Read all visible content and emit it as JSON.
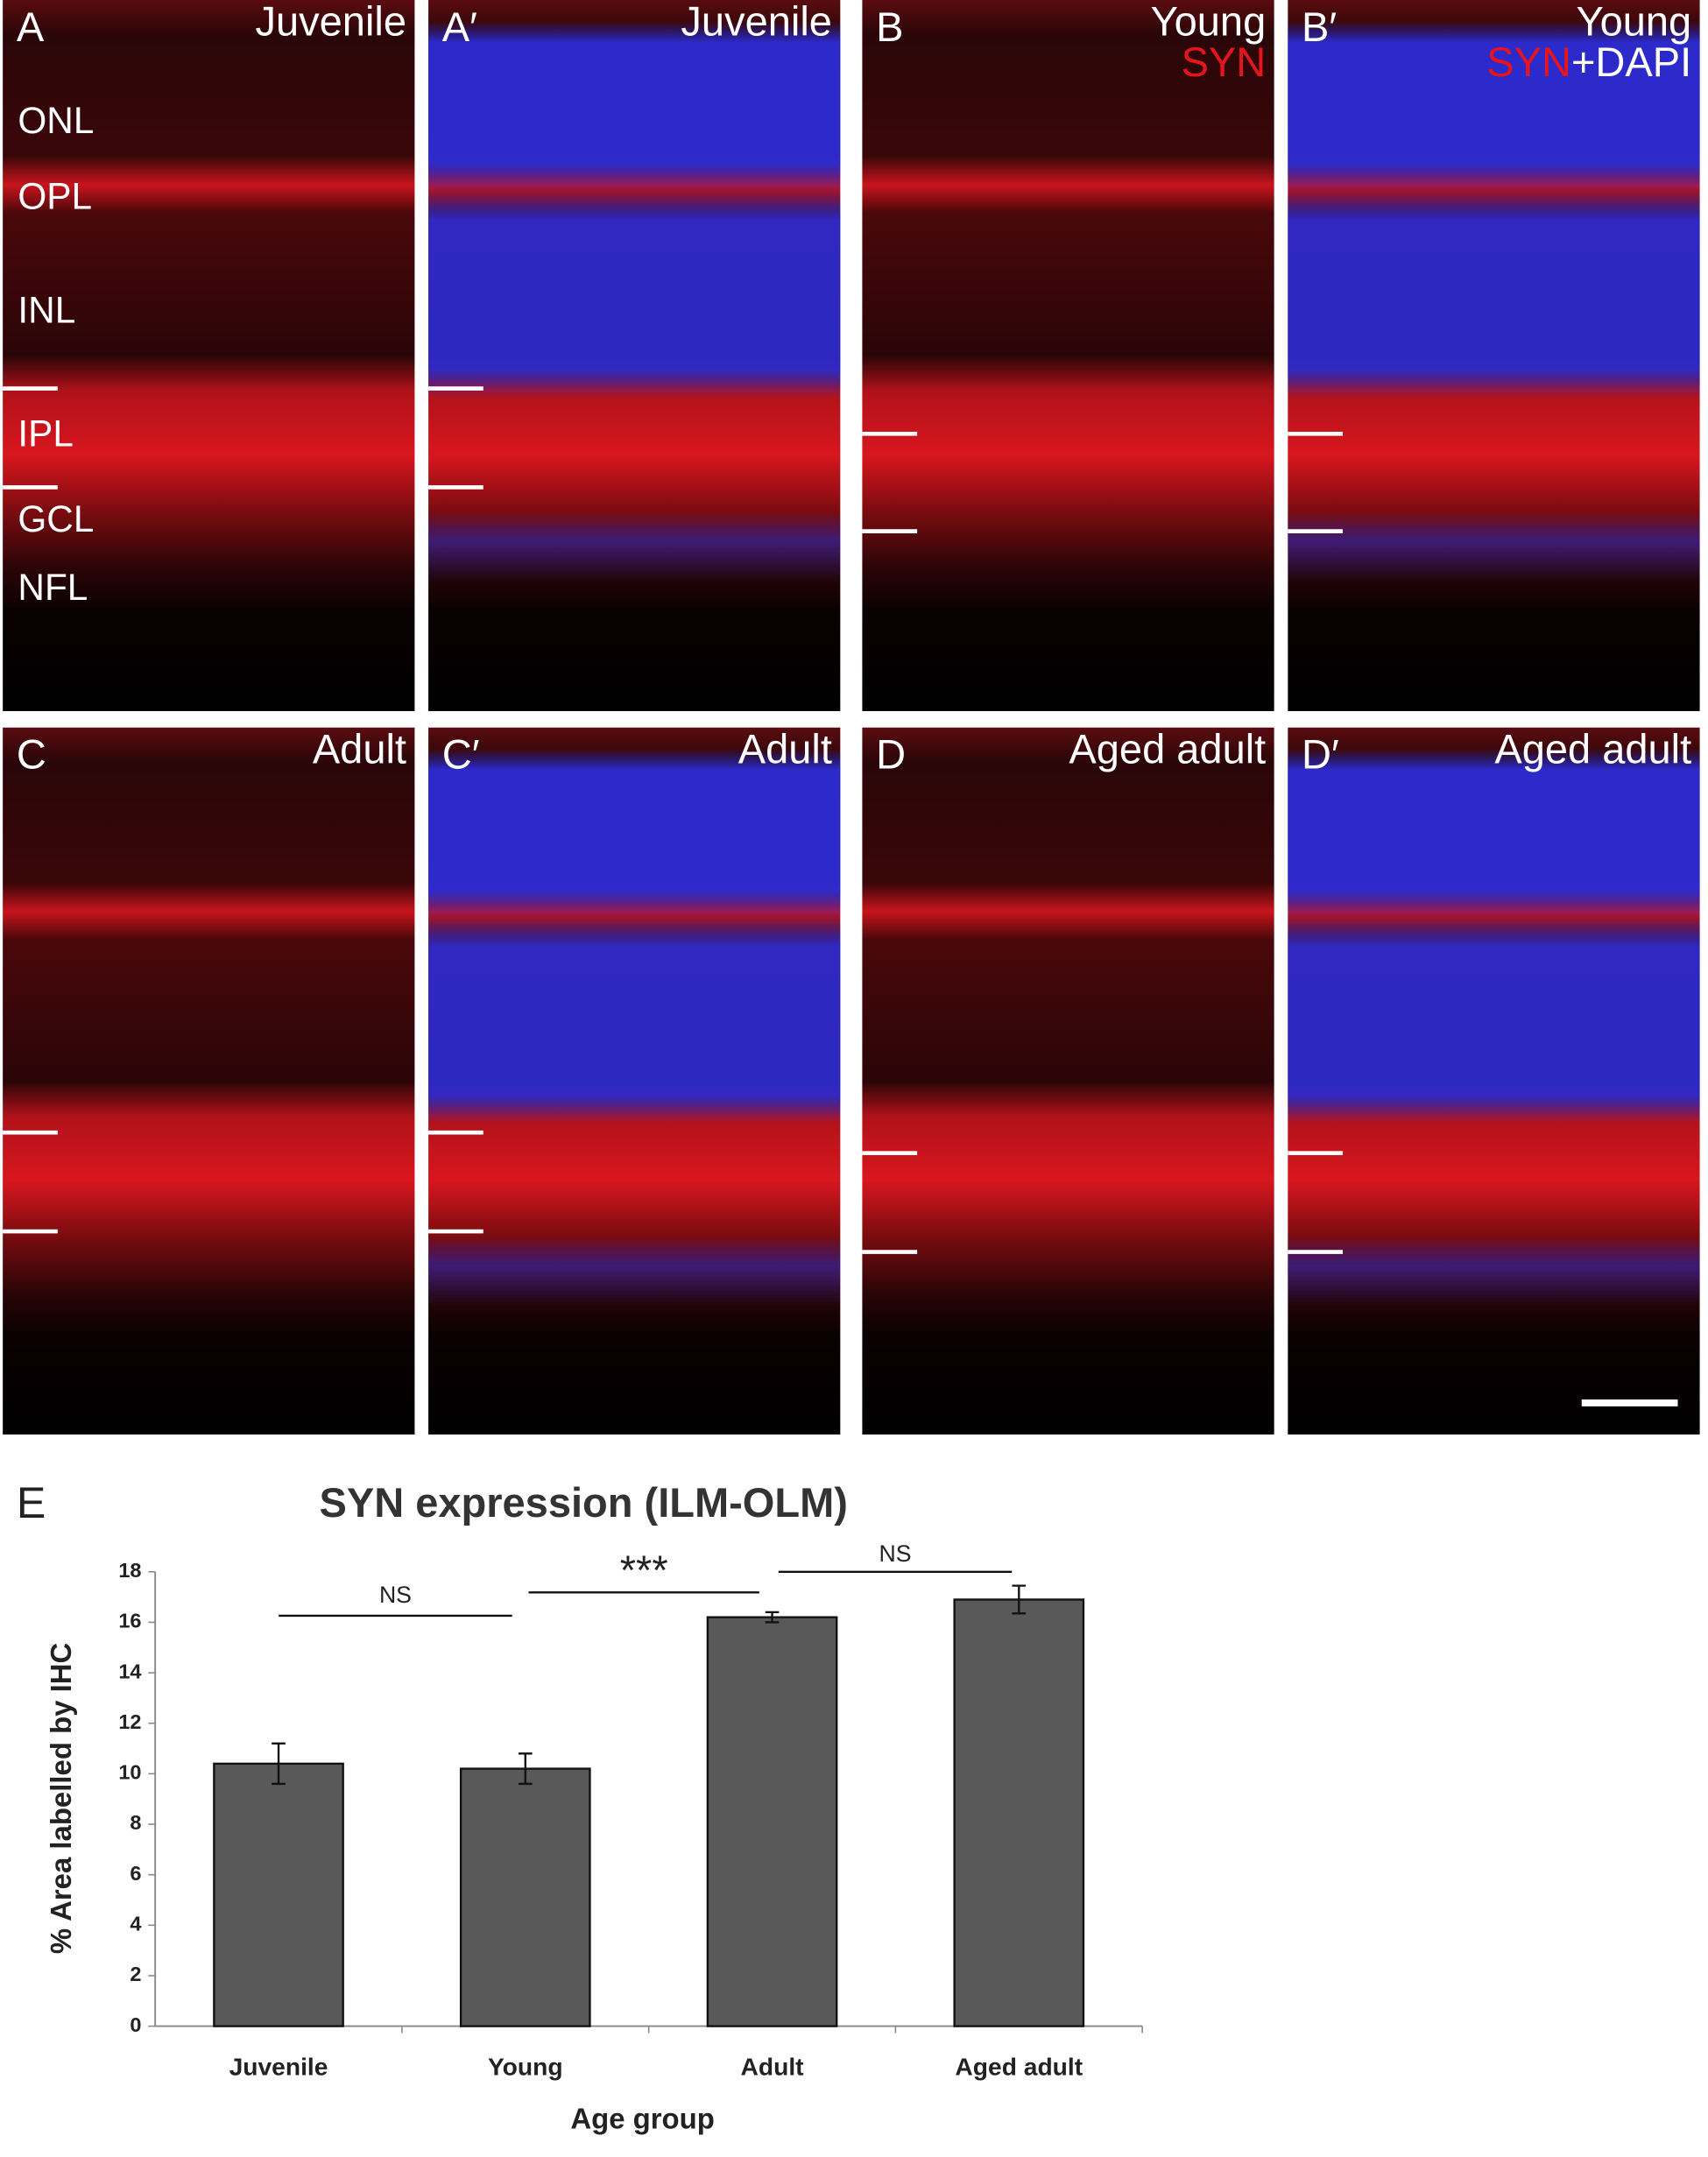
{
  "panels": [
    {
      "letter": "A",
      "label": "Juvenile"
    },
    {
      "letter": "A′",
      "label": "Juvenile"
    },
    {
      "letter": "B",
      "label": "Young",
      "stain": "SYN"
    },
    {
      "letter": "B′",
      "label": "Young",
      "stain": "SYN",
      "counterstain": "+DAPI"
    },
    {
      "letter": "C",
      "label": "Adult"
    },
    {
      "letter": "C′",
      "label": "Adult"
    },
    {
      "letter": "D",
      "label": "Aged adult"
    },
    {
      "letter": "D′",
      "label": "Aged adult"
    }
  ],
  "layers": [
    "ONL",
    "OPL",
    "INL",
    "IPL",
    "GCL",
    "NFL"
  ],
  "chart_data": {
    "type": "bar",
    "panel_letter": "E",
    "title": "SYN expression (ILM-OLM)",
    "xlabel": "Age group",
    "ylabel": "% Area labelled by IHC",
    "categories": [
      "Juvenile",
      "Young",
      "Adult",
      "Aged adult"
    ],
    "values": [
      10.4,
      10.2,
      16.2,
      16.9
    ],
    "errors": [
      0.8,
      0.6,
      0.2,
      0.55
    ],
    "color": "#595959",
    "ylim": [
      0,
      18
    ],
    "yticks": [
      0,
      2,
      4,
      6,
      8,
      10,
      12,
      14,
      16,
      18
    ],
    "annotations": [
      "NS",
      "***",
      "NS"
    ]
  }
}
